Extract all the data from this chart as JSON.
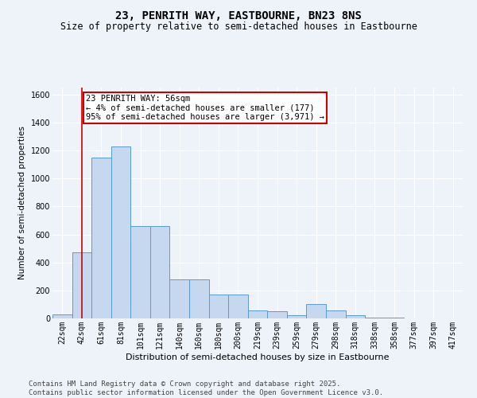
{
  "title1": "23, PENRITH WAY, EASTBOURNE, BN23 8NS",
  "title2": "Size of property relative to semi-detached houses in Eastbourne",
  "xlabel": "Distribution of semi-detached houses by size in Eastbourne",
  "ylabel": "Number of semi-detached properties",
  "footer1": "Contains HM Land Registry data © Crown copyright and database right 2025.",
  "footer2": "Contains public sector information licensed under the Open Government Licence v3.0.",
  "annotation_title": "23 PENRITH WAY: 56sqm",
  "annotation_line1": "← 4% of semi-detached houses are smaller (177)",
  "annotation_line2": "95% of semi-detached houses are larger (3,971) →",
  "subject_bin_index": 1,
  "bar_labels": [
    "22sqm",
    "42sqm",
    "61sqm",
    "81sqm",
    "101sqm",
    "121sqm",
    "140sqm",
    "160sqm",
    "180sqm",
    "200sqm",
    "219sqm",
    "239sqm",
    "259sqm",
    "279sqm",
    "298sqm",
    "318sqm",
    "338sqm",
    "358sqm",
    "377sqm",
    "397sqm",
    "417sqm"
  ],
  "bar_values": [
    30,
    470,
    1150,
    1230,
    660,
    660,
    280,
    280,
    170,
    170,
    55,
    50,
    20,
    100,
    55,
    20,
    5,
    5,
    2,
    2,
    2
  ],
  "bar_color": "#c5d8f0",
  "bar_edge_color": "#5a9bd5",
  "subject_line_color": "#cc0000",
  "annotation_box_color": "#cc0000",
  "background_color": "#eef2f9",
  "ylim": [
    0,
    1650
  ],
  "yticks": [
    0,
    200,
    400,
    600,
    800,
    1000,
    1200,
    1400,
    1600
  ],
  "grid_color": "#ffffff",
  "title1_fontsize": 10,
  "title2_fontsize": 8.5,
  "xlabel_fontsize": 8,
  "ylabel_fontsize": 7.5,
  "tick_fontsize": 7,
  "annotation_fontsize": 7.5,
  "footer_fontsize": 6.5
}
